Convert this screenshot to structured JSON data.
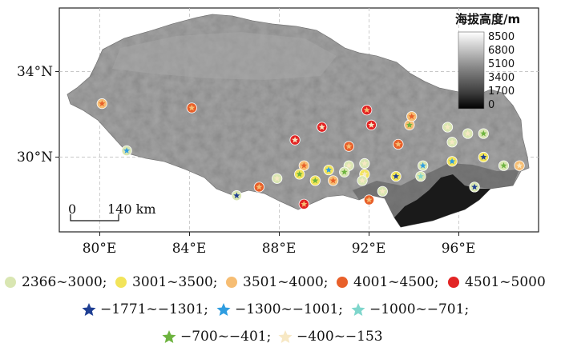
{
  "colorbar": {
    "title": "海拔高度/m",
    "ticks": [
      "8500",
      "6800",
      "5100",
      "3400",
      "1700",
      "0"
    ]
  },
  "x_axis_labels": [
    "80°E",
    "84°E",
    "88°E",
    "92°E",
    "96°E"
  ],
  "y_axis_labels": [
    "34°N",
    "30°N"
  ],
  "scale_bar": {
    "zero": "0",
    "distance": "140 km"
  },
  "legend": {
    "row1": [
      {
        "label": "2366~3000;",
        "color": "#d9e6b2",
        "shape": "circle"
      },
      {
        "label": "3001~3500;",
        "color": "#f2e45a",
        "shape": "circle"
      },
      {
        "label": "3501~4000;",
        "color": "#f6bd73",
        "shape": "circle"
      },
      {
        "label": "4001~4500;",
        "color": "#e8602a",
        "shape": "circle"
      },
      {
        "label": "4501~5000",
        "color": "#e22424",
        "shape": "circle"
      }
    ],
    "row2": [
      {
        "label": "−1771~−1301;",
        "color": "#1f3f93",
        "shape": "star"
      },
      {
        "label": "−1300~−1001;",
        "color": "#2f9de0",
        "shape": "star"
      },
      {
        "label": "−1000~−701;",
        "color": "#7fd6cc",
        "shape": "star"
      }
    ],
    "row3": [
      {
        "label": "−700~−401;",
        "color": "#6db33f",
        "shape": "star"
      },
      {
        "label": "−400~−153",
        "color": "#f7e8c4",
        "shape": "star"
      }
    ]
  },
  "stations": [
    {
      "lon": 80.1,
      "lat": 32.5,
      "circle": "#f6bd73",
      "star": "#e8602a"
    },
    {
      "lon": 84.1,
      "lat": 32.3,
      "circle": "#e8602a",
      "star": "#f6bd73"
    },
    {
      "lon": 81.2,
      "lat": 30.3,
      "circle": "#d9e6b2",
      "star": "#2f9de0"
    },
    {
      "lon": 88.7,
      "lat": 30.8,
      "circle": "#e22424",
      "star": "#f7e8c4"
    },
    {
      "lon": 89.9,
      "lat": 31.4,
      "circle": "#e22424",
      "star": "#f7e8c4"
    },
    {
      "lon": 91.9,
      "lat": 32.2,
      "circle": "#e22424",
      "star": "#f6bd73"
    },
    {
      "lon": 92.1,
      "lat": 31.5,
      "circle": "#e22424",
      "star": "#f7e8c4"
    },
    {
      "lon": 93.8,
      "lat": 31.5,
      "circle": "#f6bd73",
      "star": "#6db33f"
    },
    {
      "lon": 93.9,
      "lat": 31.9,
      "circle": "#f6bd73",
      "star": "#e8602a"
    },
    {
      "lon": 95.5,
      "lat": 31.4,
      "circle": "#d9e6b2",
      "star": "#f7e8c4"
    },
    {
      "lon": 96.4,
      "lat": 31.1,
      "circle": "#d9e6b2",
      "star": "#f7e8c4"
    },
    {
      "lon": 97.1,
      "lat": 31.1,
      "circle": "#d9e6b2",
      "star": "#6db33f"
    },
    {
      "lon": 95.7,
      "lat": 30.7,
      "circle": "#d9e6b2",
      "star": "#f7e8c4"
    },
    {
      "lon": 91.1,
      "lat": 30.5,
      "circle": "#e8602a",
      "star": "#f6bd73"
    },
    {
      "lon": 93.3,
      "lat": 30.6,
      "circle": "#e8602a",
      "star": "#f6bd73"
    },
    {
      "lon": 97.1,
      "lat": 30.0,
      "circle": "#f2e45a",
      "star": "#1f3f93"
    },
    {
      "lon": 98.0,
      "lat": 29.6,
      "circle": "#d9e6b2",
      "star": "#6db33f"
    },
    {
      "lon": 98.7,
      "lat": 29.6,
      "circle": "#f6bd73",
      "star": "#f7e8c4"
    },
    {
      "lon": 95.7,
      "lat": 29.8,
      "circle": "#f2e45a",
      "star": "#2f9de0"
    },
    {
      "lon": 94.4,
      "lat": 29.6,
      "circle": "#d9e6b2",
      "star": "#2f9de0"
    },
    {
      "lon": 94.3,
      "lat": 29.1,
      "circle": "#d9e6b2",
      "star": "#7fd6cc"
    },
    {
      "lon": 93.2,
      "lat": 29.1,
      "circle": "#f2e45a",
      "star": "#1f3f93"
    },
    {
      "lon": 92.6,
      "lat": 28.4,
      "circle": "#d9e6b2",
      "star": "#f7e8c4"
    },
    {
      "lon": 91.1,
      "lat": 29.6,
      "circle": "#d9e6b2",
      "star": "#f7e8c4"
    },
    {
      "lon": 91.8,
      "lat": 29.7,
      "circle": "#d9e6b2",
      "star": "#f7e8c4"
    },
    {
      "lon": 90.9,
      "lat": 29.3,
      "circle": "#d9e6b2",
      "star": "#6db33f"
    },
    {
      "lon": 91.8,
      "lat": 29.2,
      "circle": "#f2e45a",
      "star": "#f7e8c4"
    },
    {
      "lon": 91.7,
      "lat": 28.9,
      "circle": "#d9e6b2",
      "star": "#f7e8c4"
    },
    {
      "lon": 90.2,
      "lat": 29.4,
      "circle": "#f2e45a",
      "star": "#2f9de0"
    },
    {
      "lon": 89.1,
      "lat": 29.6,
      "circle": "#f6bd73",
      "star": "#e8602a"
    },
    {
      "lon": 88.9,
      "lat": 29.2,
      "circle": "#f2e45a",
      "star": "#6db33f"
    },
    {
      "lon": 89.6,
      "lat": 28.9,
      "circle": "#f2e45a",
      "star": "#6db33f"
    },
    {
      "lon": 90.4,
      "lat": 28.9,
      "circle": "#f6bd73",
      "star": "#e8602a"
    },
    {
      "lon": 87.9,
      "lat": 29.0,
      "circle": "#d9e6b2",
      "star": "#f7e8c4"
    },
    {
      "lon": 87.1,
      "lat": 28.6,
      "circle": "#e8602a",
      "star": "#f6bd73"
    },
    {
      "lon": 86.1,
      "lat": 28.2,
      "circle": "#d9e6b2",
      "star": "#1f3f93"
    },
    {
      "lon": 89.1,
      "lat": 27.8,
      "circle": "#e22424",
      "star": "#f6bd73"
    },
    {
      "lon": 92.0,
      "lat": 28.0,
      "circle": "#e8602a",
      "star": "#f6bd73"
    },
    {
      "lon": 96.7,
      "lat": 28.6,
      "circle": "#d9e6b2",
      "star": "#1f3f93"
    }
  ]
}
